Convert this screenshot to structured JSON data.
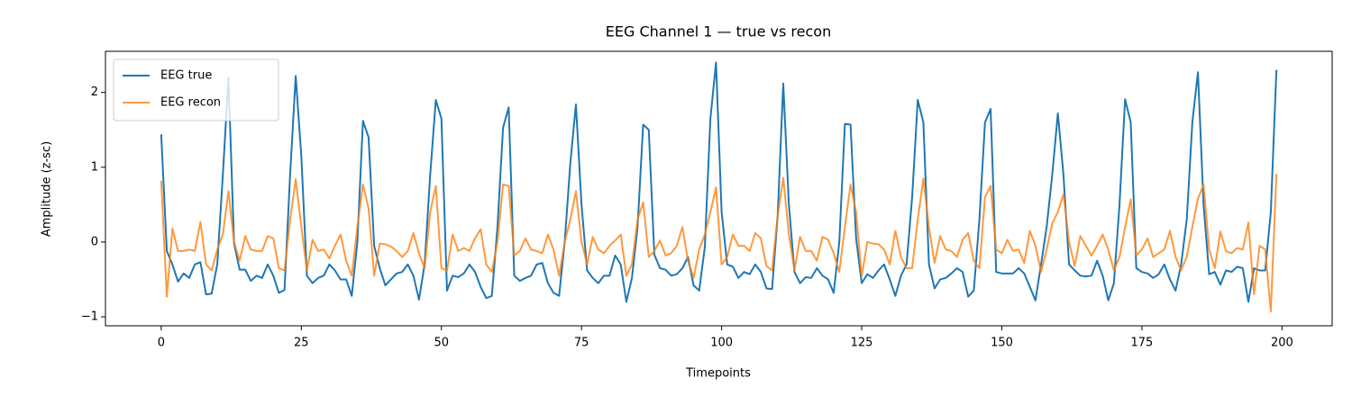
{
  "chart_data": {
    "type": "line",
    "title": "EEG Channel 1 — true vs recon",
    "x_label": "Timepoints",
    "y_label": "Amplitude (z-sc)",
    "x": [
      0,
      1,
      2,
      3,
      4,
      5,
      6,
      7,
      8,
      9,
      10,
      11,
      12,
      13,
      14,
      15,
      16,
      17,
      18,
      19,
      20,
      21,
      22,
      23,
      24,
      25,
      26,
      27,
      28,
      29,
      30,
      31,
      32,
      33,
      34,
      35,
      36,
      37,
      38,
      39,
      40,
      41,
      42,
      43,
      44,
      45,
      46,
      47,
      48,
      49,
      50,
      51,
      52,
      53,
      54,
      55,
      56,
      57,
      58,
      59,
      60,
      61,
      62,
      63,
      64,
      65,
      66,
      67,
      68,
      69,
      70,
      71,
      72,
      73,
      74,
      75,
      76,
      77,
      78,
      79,
      80,
      81,
      82,
      83,
      84,
      85,
      86,
      87,
      88,
      89,
      90,
      91,
      92,
      93,
      94,
      95,
      96,
      97,
      98,
      99,
      100,
      101,
      102,
      103,
      104,
      105,
      106,
      107,
      108,
      109,
      110,
      111,
      112,
      113,
      114,
      115,
      116,
      117,
      118,
      119,
      120,
      121,
      122,
      123,
      124,
      125,
      126,
      127,
      128,
      129,
      130,
      131,
      132,
      133,
      134,
      135,
      136,
      137,
      138,
      139,
      140,
      141,
      142,
      143,
      144,
      145,
      146,
      147,
      148,
      149,
      150,
      151,
      152,
      153,
      154,
      155,
      156,
      157,
      158,
      159,
      160,
      161,
      162,
      163,
      164,
      165,
      166,
      167,
      168,
      169,
      170,
      171,
      172,
      173,
      174,
      175,
      176,
      177,
      178,
      179,
      180,
      181,
      182,
      183,
      184,
      185,
      186,
      187,
      188,
      189,
      190,
      191,
      192,
      193,
      194,
      195,
      196,
      197,
      198,
      199
    ],
    "series": [
      {
        "name": "EEG true",
        "color": "#1f77b4",
        "values": [
          1.44,
          -0.12,
          -0.3,
          -0.53,
          -0.42,
          -0.48,
          -0.3,
          -0.27,
          -0.7,
          -0.69,
          -0.3,
          0.9,
          2.2,
          -0.02,
          -0.37,
          -0.37,
          -0.52,
          -0.45,
          -0.48,
          -0.3,
          -0.45,
          -0.68,
          -0.64,
          0.9,
          2.22,
          1.15,
          -0.45,
          -0.55,
          -0.48,
          -0.45,
          -0.3,
          -0.38,
          -0.5,
          -0.5,
          -0.72,
          0.0,
          1.62,
          1.4,
          -0.05,
          -0.35,
          -0.58,
          -0.5,
          -0.42,
          -0.4,
          -0.3,
          -0.45,
          -0.77,
          -0.3,
          0.9,
          1.9,
          1.65,
          -0.65,
          -0.45,
          -0.47,
          -0.42,
          -0.3,
          -0.4,
          -0.6,
          -0.75,
          -0.72,
          0.2,
          1.53,
          1.8,
          -0.45,
          -0.52,
          -0.48,
          -0.45,
          -0.3,
          -0.28,
          -0.55,
          -0.68,
          -0.72,
          0.0,
          1.05,
          1.84,
          0.5,
          -0.38,
          -0.48,
          -0.55,
          -0.45,
          -0.45,
          -0.18,
          -0.3,
          -0.8,
          -0.48,
          0.2,
          1.57,
          1.5,
          -0.17,
          -0.35,
          -0.37,
          -0.45,
          -0.43,
          -0.35,
          -0.2,
          -0.58,
          -0.65,
          -0.07,
          1.65,
          2.4,
          0.4,
          -0.3,
          -0.33,
          -0.48,
          -0.4,
          -0.43,
          -0.3,
          -0.4,
          -0.62,
          -0.63,
          0.35,
          2.12,
          0.5,
          -0.4,
          -0.55,
          -0.47,
          -0.48,
          -0.35,
          -0.45,
          -0.5,
          -0.68,
          0.0,
          1.58,
          1.57,
          0.05,
          -0.55,
          -0.43,
          -0.48,
          -0.38,
          -0.3,
          -0.5,
          -0.72,
          -0.45,
          -0.3,
          0.6,
          1.9,
          1.6,
          -0.3,
          -0.62,
          -0.5,
          -0.48,
          -0.42,
          -0.35,
          -0.4,
          -0.73,
          -0.65,
          0.3,
          1.6,
          1.78,
          -0.4,
          -0.42,
          -0.42,
          -0.42,
          -0.35,
          -0.42,
          -0.6,
          -0.78,
          -0.3,
          0.2,
          0.9,
          1.72,
          0.9,
          -0.3,
          -0.38,
          -0.45,
          -0.46,
          -0.45,
          -0.25,
          -0.45,
          -0.78,
          -0.55,
          0.5,
          1.91,
          1.6,
          -0.35,
          -0.4,
          -0.42,
          -0.48,
          -0.43,
          -0.3,
          -0.5,
          -0.65,
          -0.3,
          0.3,
          1.6,
          2.27,
          0.5,
          -0.43,
          -0.4,
          -0.57,
          -0.38,
          -0.4,
          -0.33,
          -0.35,
          -0.8,
          -0.35,
          -0.38,
          -0.38,
          0.4,
          2.3
        ]
      },
      {
        "name": "EEG recon",
        "color": "#ff7f0e",
        "values": [
          0.82,
          -0.73,
          0.18,
          -0.12,
          -0.12,
          -0.1,
          -0.12,
          0.27,
          -0.3,
          -0.38,
          -0.1,
          0.1,
          0.68,
          0.0,
          -0.25,
          0.08,
          -0.1,
          -0.12,
          -0.12,
          0.08,
          0.05,
          -0.35,
          -0.38,
          0.3,
          0.84,
          0.2,
          -0.38,
          0.03,
          -0.12,
          -0.1,
          -0.22,
          -0.05,
          0.1,
          -0.25,
          -0.45,
          0.2,
          0.77,
          0.45,
          -0.45,
          -0.02,
          -0.03,
          -0.06,
          -0.12,
          -0.2,
          -0.12,
          0.12,
          -0.15,
          -0.35,
          0.4,
          0.75,
          -0.35,
          -0.38,
          0.1,
          -0.12,
          -0.08,
          -0.12,
          0.05,
          0.17,
          -0.3,
          -0.4,
          0.0,
          0.77,
          0.75,
          -0.18,
          -0.12,
          0.05,
          -0.1,
          -0.12,
          -0.15,
          0.1,
          -0.1,
          -0.45,
          0.0,
          0.3,
          0.68,
          0.0,
          -0.3,
          0.07,
          -0.1,
          -0.15,
          -0.05,
          0.02,
          0.1,
          -0.45,
          -0.3,
          0.3,
          0.53,
          -0.2,
          -0.12,
          0.02,
          -0.18,
          -0.15,
          -0.05,
          0.2,
          -0.25,
          -0.48,
          -0.1,
          0.1,
          0.4,
          0.73,
          -0.3,
          -0.2,
          0.1,
          -0.05,
          -0.05,
          -0.12,
          0.12,
          0.05,
          -0.32,
          -0.38,
          0.35,
          0.86,
          0.1,
          -0.38,
          0.07,
          -0.12,
          -0.12,
          -0.25,
          0.07,
          0.03,
          -0.15,
          -0.4,
          0.2,
          0.77,
          0.4,
          -0.46,
          0.0,
          -0.02,
          -0.03,
          -0.1,
          -0.3,
          0.15,
          -0.2,
          -0.35,
          -0.35,
          0.3,
          0.85,
          0.2,
          -0.28,
          0.08,
          -0.1,
          -0.12,
          -0.2,
          0.03,
          0.12,
          -0.25,
          -0.35,
          0.6,
          0.75,
          -0.1,
          -0.15,
          0.03,
          -0.12,
          -0.1,
          -0.28,
          0.15,
          -0.05,
          -0.4,
          -0.1,
          0.25,
          0.4,
          0.64,
          0.0,
          -0.32,
          0.08,
          -0.05,
          -0.18,
          -0.05,
          0.1,
          -0.1,
          -0.38,
          -0.2,
          0.2,
          0.57,
          -0.18,
          -0.1,
          0.05,
          -0.2,
          -0.15,
          -0.1,
          0.15,
          -0.2,
          -0.38,
          -0.2,
          0.2,
          0.58,
          0.77,
          -0.1,
          -0.35,
          0.14,
          -0.12,
          -0.15,
          -0.08,
          -0.1,
          0.26,
          -0.7,
          -0.05,
          -0.1,
          -0.93,
          0.91
        ]
      }
    ],
    "xlim": [
      -9.95,
      208.95
    ],
    "ylim": [
      -1.12,
      2.55
    ],
    "xticks": [
      0,
      25,
      50,
      75,
      100,
      125,
      150,
      175,
      200
    ],
    "yticks": [
      {
        "value": -1,
        "label": "−1"
      },
      0,
      1,
      2
    ],
    "legend": "upper left",
    "grid": false
  }
}
